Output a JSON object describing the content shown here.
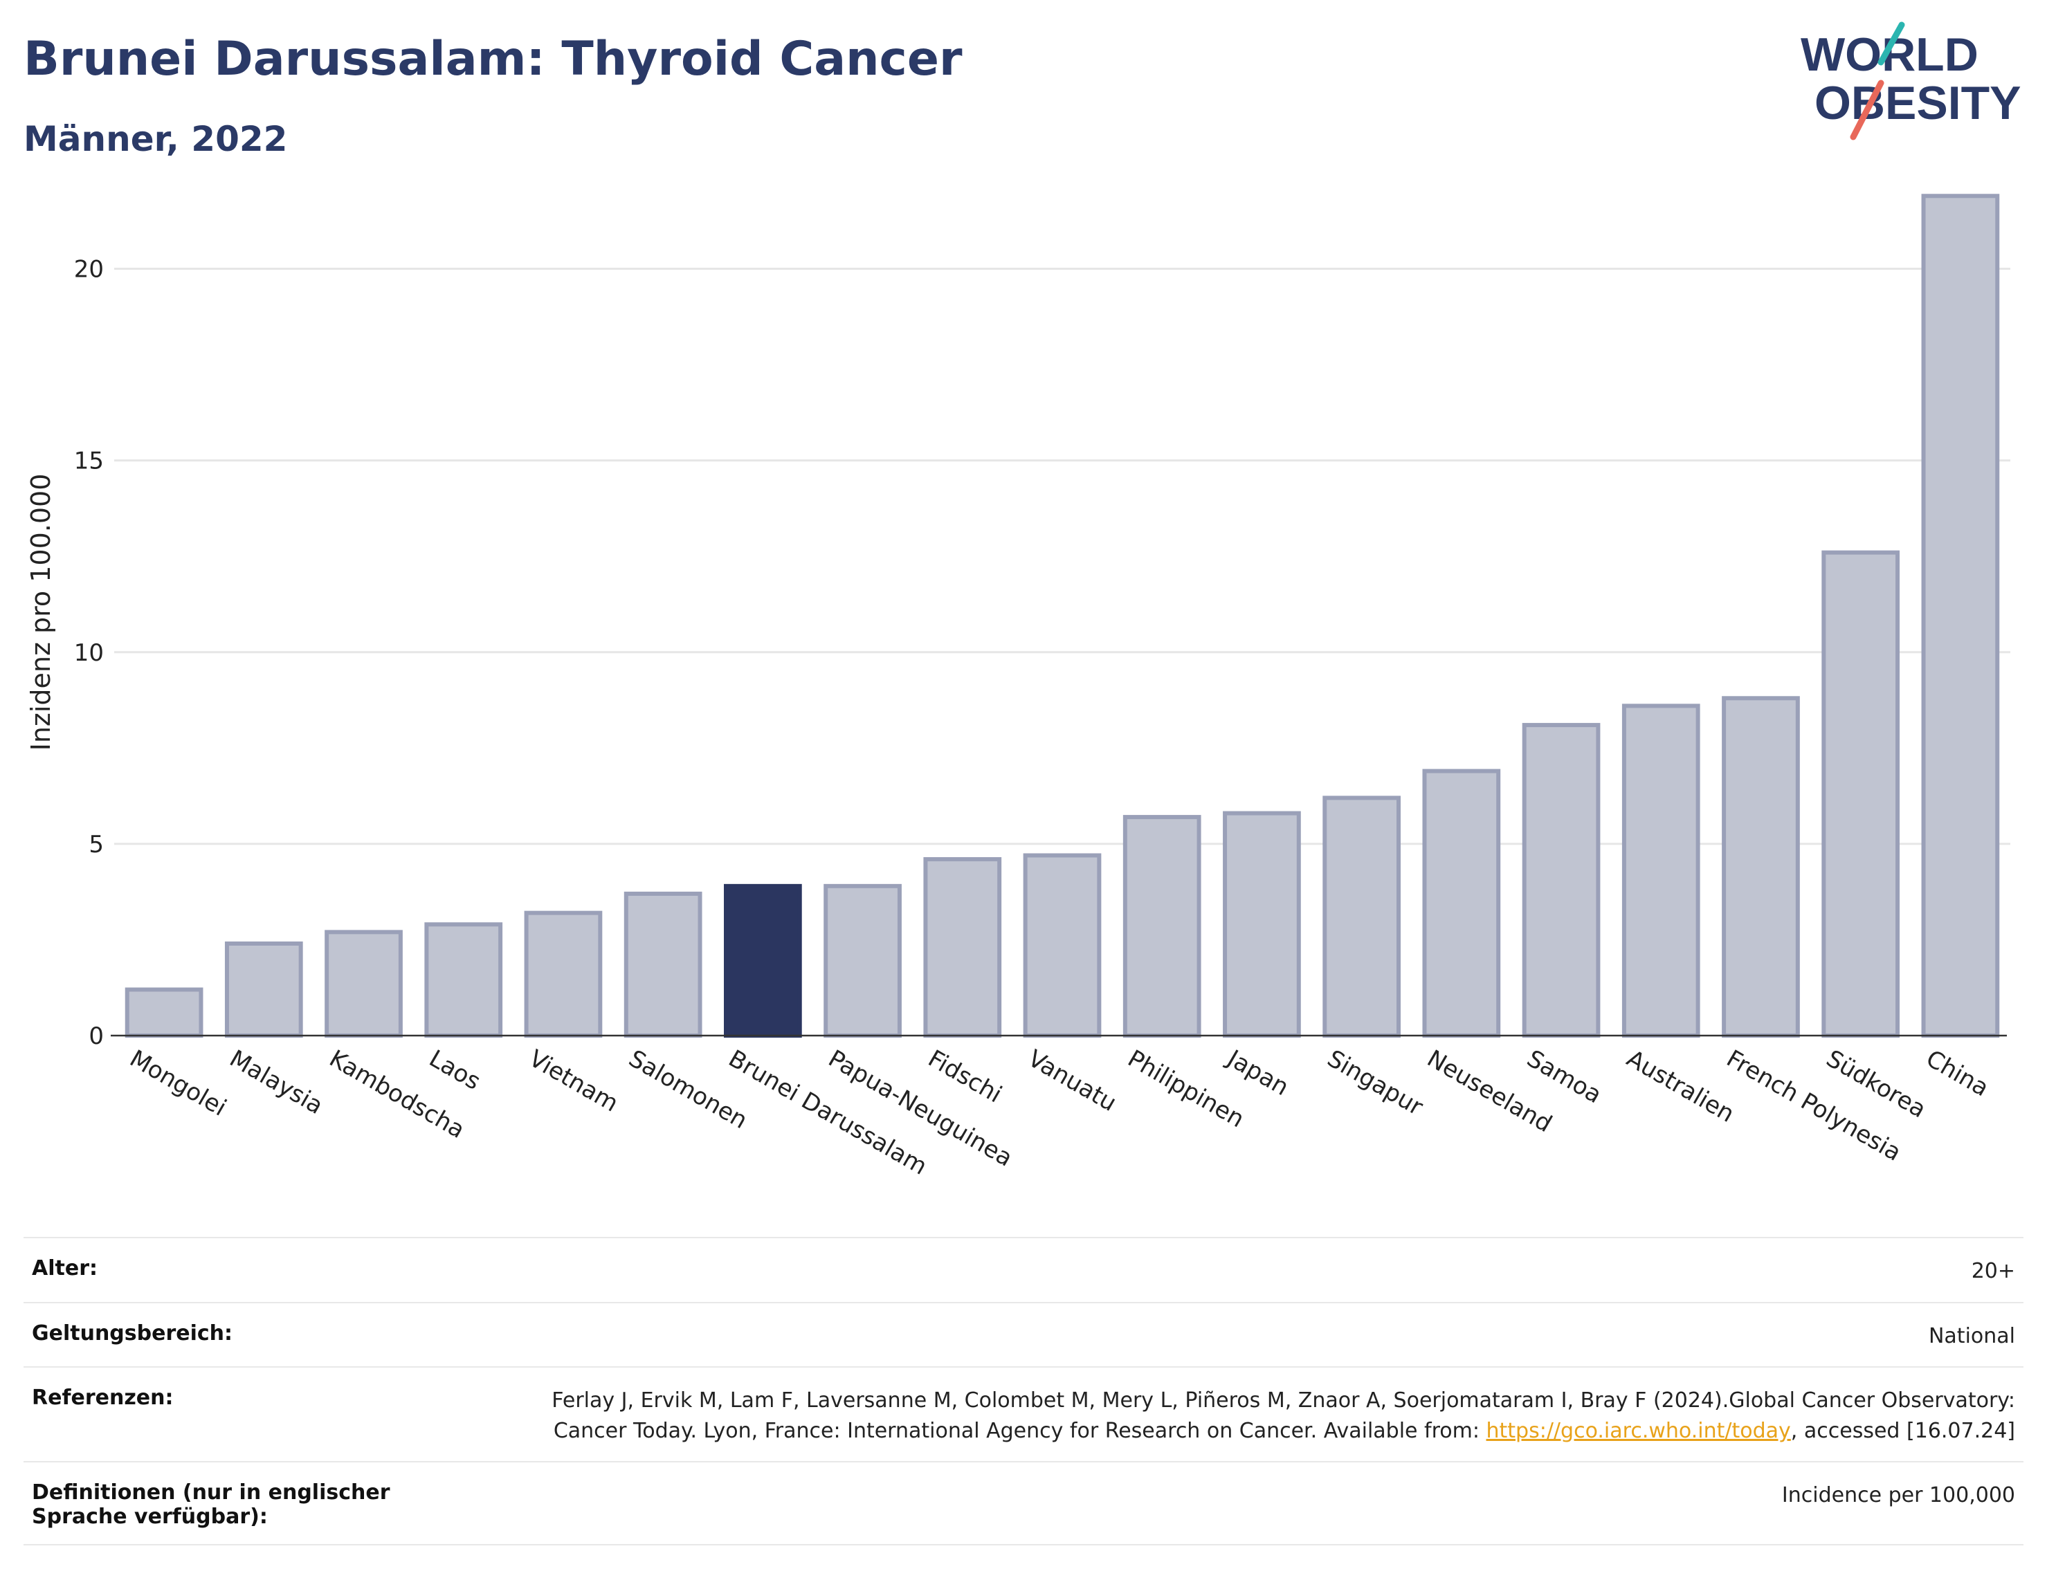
{
  "header": {
    "title": "Brunei Darussalam: Thyroid Cancer",
    "subtitle": "Männer, 2022"
  },
  "logo": {
    "line1": "WORLD",
    "line2": "OBESITY",
    "accent_teal": "#2bb5b0",
    "accent_red": "#e8685a",
    "text_color": "#2b3a67"
  },
  "chart_data": {
    "type": "bar",
    "ylabel": "Inzidenz pro 100.000",
    "ylim": [
      0,
      22.5
    ],
    "yticks": [
      0,
      5,
      10,
      15,
      20
    ],
    "grid": true,
    "highlight": "Brunei Darussalam",
    "colors": {
      "bar": "#c0c4d1",
      "bar_edge": "#9aa0b8",
      "highlight": "#2b3660",
      "grid": "#e6e6e6",
      "axis": "#333333"
    },
    "categories": [
      "Mongolei",
      "Malaysia",
      "Kambodscha",
      "Laos",
      "Vietnam",
      "Salomonen",
      "Brunei Darussalam",
      "Papua-Neuguinea",
      "Fidschi",
      "Vanuatu",
      "Philippinen",
      "Japan",
      "Singapur",
      "Neuseeland",
      "Samoa",
      "Australien",
      "French Polynesia",
      "Südkorea",
      "China"
    ],
    "values": [
      1.2,
      2.4,
      2.7,
      2.9,
      3.2,
      3.7,
      3.9,
      3.9,
      4.6,
      4.7,
      5.7,
      5.8,
      6.2,
      6.9,
      8.1,
      8.6,
      8.8,
      12.6,
      21.9
    ]
  },
  "meta": {
    "rows": [
      {
        "key": "Alter:",
        "value": "20+"
      },
      {
        "key": "Geltungsbereich:",
        "value": "National"
      },
      {
        "key": "Referenzen:",
        "value_part1": "Ferlay J, Ervik M, Lam F, Laversanne M, Colombet M, Mery L, Piñeros M, Znaor A, Soerjomataram I, Bray F (2024).Global Cancer Observatory: Cancer Today. Lyon, France: International Agency for Research on Cancer. Available from: ",
        "link": "https://gco.iarc.who.int/today",
        "value_part2": ", accessed [16.07.24]"
      },
      {
        "key": "Definitionen (nur in englischer Sprache verfügbar):",
        "value": "Incidence per 100,000"
      }
    ]
  }
}
